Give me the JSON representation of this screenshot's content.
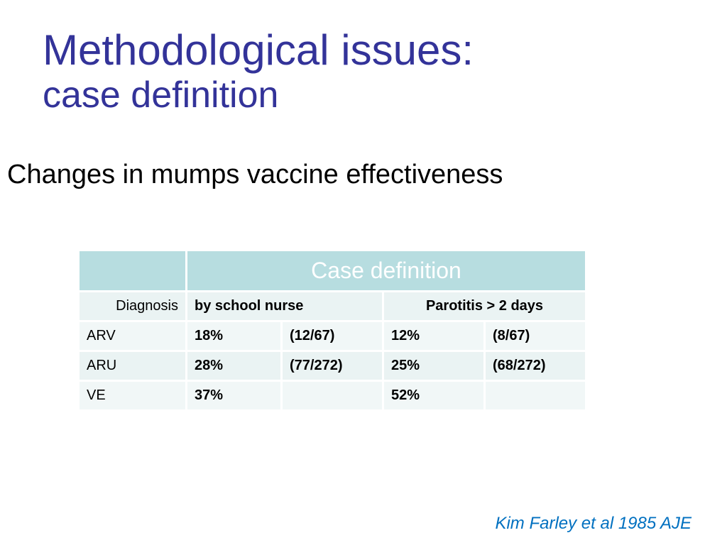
{
  "title": {
    "line1": "Methodological issues:",
    "line2": "case definition"
  },
  "subtitle": "Changes in mumps vaccine effectiveness",
  "table": {
    "header": "Case definition",
    "subheader": {
      "label": "Diagnosis",
      "col1": "by school nurse",
      "col2": "Parotitis > 2 days"
    },
    "rows": [
      {
        "label": "ARV",
        "a": "18%",
        "b": "(12/67)",
        "c": "12%",
        "d": "(8/67)"
      },
      {
        "label": "ARU",
        "a": "28%",
        "b": "(77/272)",
        "c": "25%",
        "d": "(68/272)"
      },
      {
        "label": "VE",
        "a": "37%",
        "b": "",
        "c": "52%",
        "d": ""
      }
    ]
  },
  "citation": "Kim Farley et al 1985 AJE"
}
